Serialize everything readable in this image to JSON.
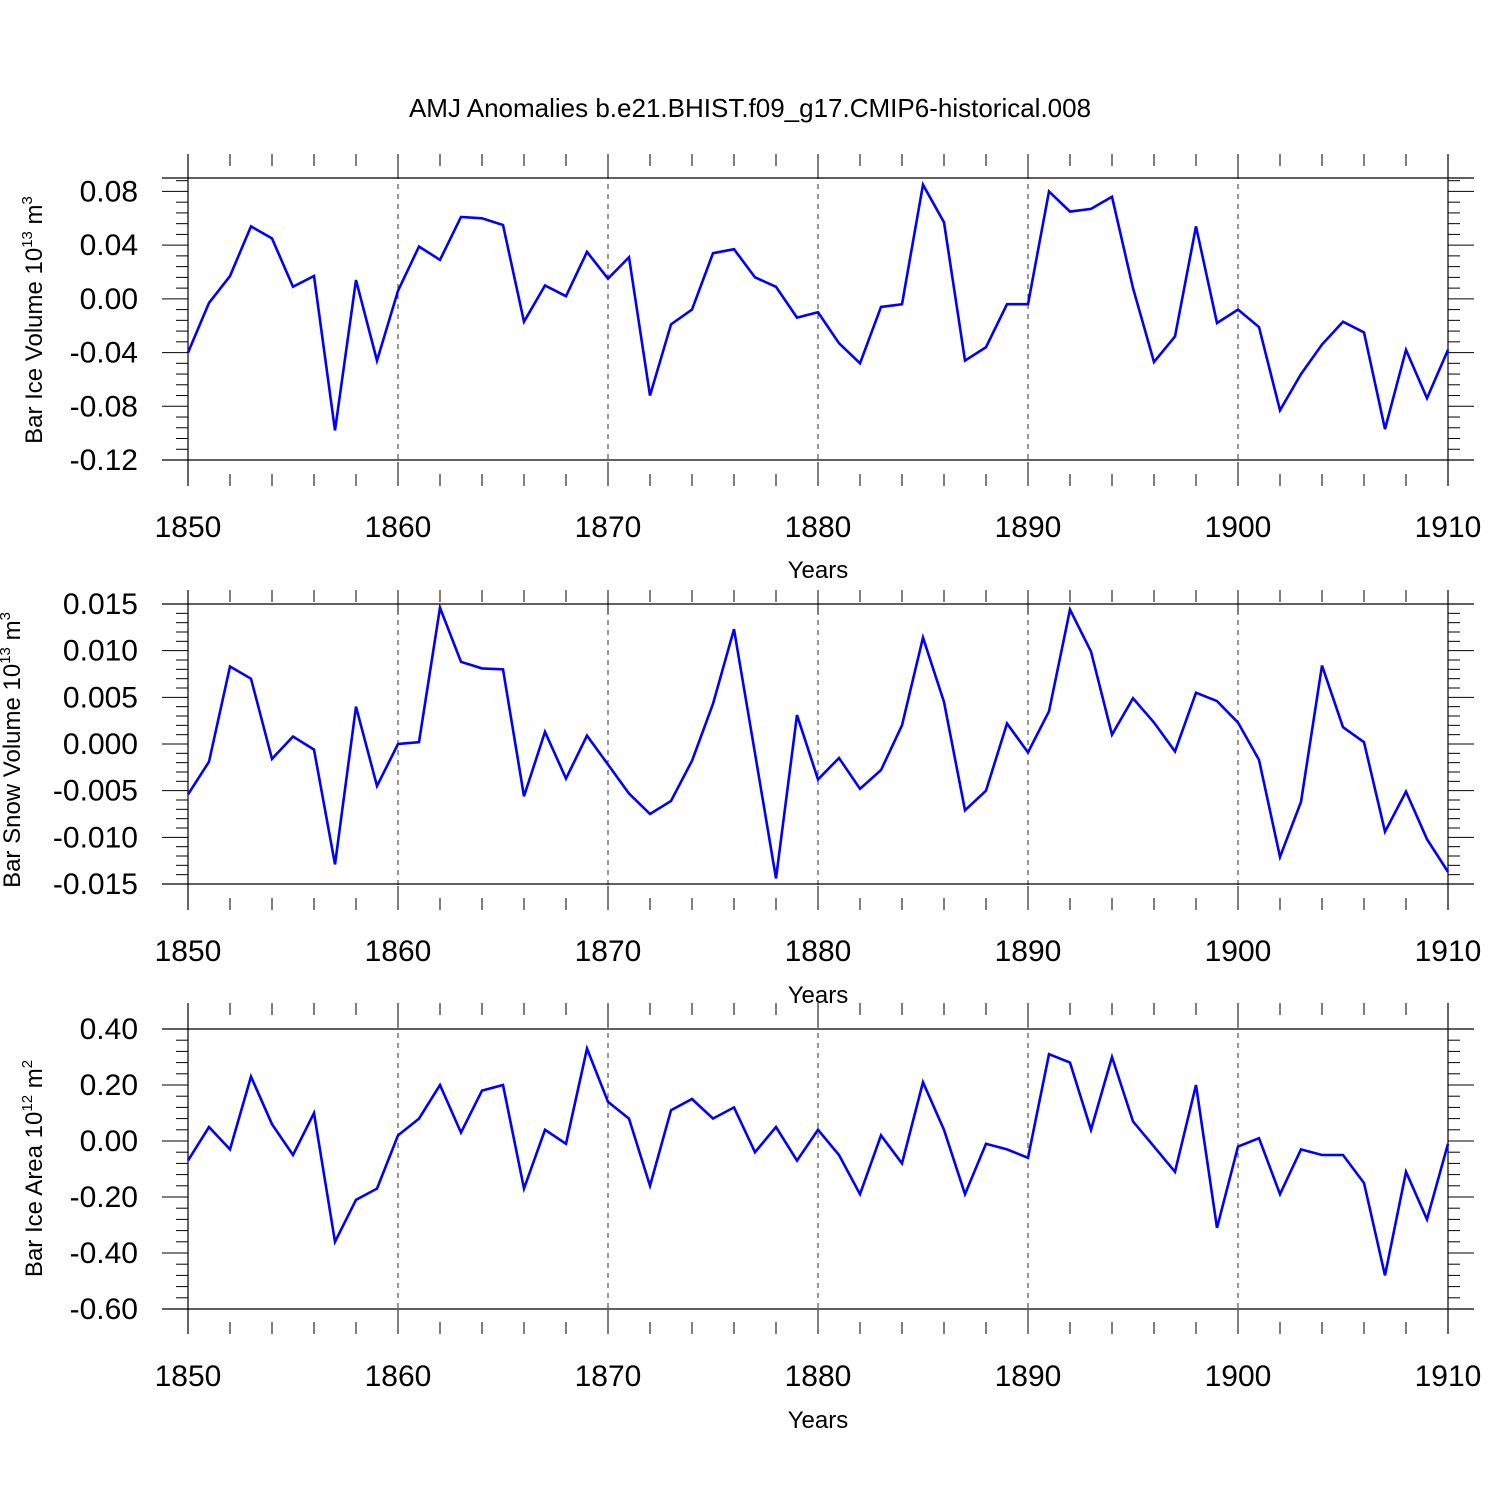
{
  "title": "AMJ Anomalies b.e21.BHIST.f09_g17.CMIP6-historical.008",
  "line_color": "#0000ff",
  "chart_data": [
    {
      "type": "line",
      "xlabel": "Years",
      "ylabel": {
        "main": "Bar Ice Volume 10",
        "sup": "13",
        "unit": " m",
        "unit_sup": "3"
      },
      "xlim": [
        1850,
        1910
      ],
      "ylim": [
        -0.12,
        0.09
      ],
      "xticks": [
        1850,
        1860,
        1870,
        1880,
        1890,
        1900,
        1910
      ],
      "xtick_labels": [
        "1850",
        "1860",
        "1870",
        "1880",
        "1890",
        "1900",
        "1910"
      ],
      "yticks": [
        -0.12,
        -0.08,
        -0.04,
        0.0,
        0.04,
        0.08
      ],
      "ytick_labels": [
        "-0.12",
        "-0.08",
        "-0.04",
        "0.00",
        "0.04",
        "0.08"
      ],
      "x_start": 1850,
      "values": [
        -0.04,
        -0.003,
        0.017,
        0.054,
        0.045,
        0.009,
        0.017,
        -0.098,
        0.014,
        -0.046,
        0.006,
        0.039,
        0.029,
        0.061,
        0.06,
        0.055,
        -0.017,
        0.01,
        0.002,
        0.035,
        0.015,
        0.031,
        -0.072,
        -0.019,
        -0.008,
        0.034,
        0.037,
        0.016,
        0.009,
        -0.014,
        -0.01,
        -0.033,
        -0.048,
        -0.006,
        -0.004,
        0.085,
        0.057,
        -0.046,
        -0.036,
        -0.004,
        -0.004,
        0.08,
        0.065,
        0.067,
        0.076,
        0.008,
        -0.047,
        -0.028,
        0.054,
        -0.018,
        -0.008,
        -0.021,
        -0.083,
        -0.056,
        -0.034,
        -0.017,
        -0.025,
        -0.097,
        -0.038,
        -0.074,
        -0.038
      ]
    },
    {
      "type": "line",
      "xlabel": "Years",
      "ylabel": {
        "main": "Bar Snow Volume 10",
        "sup": "13",
        "unit": " m",
        "unit_sup": "3"
      },
      "xlim": [
        1850,
        1910
      ],
      "ylim": [
        -0.015,
        0.015
      ],
      "xticks": [
        1850,
        1860,
        1870,
        1880,
        1890,
        1900,
        1910
      ],
      "xtick_labels": [
        "1850",
        "1860",
        "1870",
        "1880",
        "1890",
        "1900",
        "1910"
      ],
      "yticks": [
        -0.015,
        -0.01,
        -0.005,
        0.0,
        0.005,
        0.01,
        0.015
      ],
      "ytick_labels": [
        "-0.015",
        "-0.010",
        "-0.005",
        "0.000",
        "0.005",
        "0.010",
        "0.015"
      ],
      "x_start": 1850,
      "values": [
        -0.0054,
        -0.0019,
        0.0083,
        0.007,
        -0.0016,
        0.0008,
        -0.0006,
        -0.0129,
        0.004,
        -0.0045,
        0.0,
        0.0002,
        0.0146,
        0.0088,
        0.0081,
        0.008,
        -0.0056,
        0.0013,
        -0.0037,
        0.0009,
        -0.0022,
        -0.0053,
        -0.0075,
        -0.0061,
        -0.0018,
        0.0043,
        0.0123,
        -0.001,
        -0.0144,
        0.0031,
        -0.0038,
        -0.0015,
        -0.0048,
        -0.0028,
        0.002,
        0.0114,
        0.0045,
        -0.0071,
        -0.005,
        0.0022,
        -0.0009,
        0.0035,
        0.0144,
        0.0099,
        0.001,
        0.0049,
        0.0023,
        -0.0008,
        0.0055,
        0.0046,
        0.0023,
        -0.0017,
        -0.0121,
        -0.0062,
        0.0084,
        0.0018,
        0.0002,
        -0.0094,
        -0.0051,
        -0.0102,
        -0.0137
      ]
    },
    {
      "type": "line",
      "xlabel": "Years",
      "ylabel": {
        "main": "Bar Ice Area 10",
        "sup": "12",
        "unit": " m",
        "unit_sup": "2"
      },
      "xlim": [
        1850,
        1910
      ],
      "ylim": [
        -0.6,
        0.4
      ],
      "xticks": [
        1850,
        1860,
        1870,
        1880,
        1890,
        1900,
        1910
      ],
      "xtick_labels": [
        "1850",
        "1860",
        "1870",
        "1880",
        "1890",
        "1900",
        "1910"
      ],
      "yticks": [
        -0.6,
        -0.4,
        -0.2,
        0.0,
        0.2,
        0.4
      ],
      "ytick_labels": [
        "-0.60",
        "-0.40",
        "-0.20",
        "0.00",
        "0.20",
        "0.40"
      ],
      "x_start": 1850,
      "values": [
        -0.07,
        0.05,
        -0.03,
        0.23,
        0.06,
        -0.05,
        0.1,
        -0.36,
        -0.21,
        -0.17,
        0.02,
        0.08,
        0.2,
        0.03,
        0.18,
        0.2,
        -0.17,
        0.04,
        -0.01,
        0.33,
        0.14,
        0.08,
        -0.16,
        0.11,
        0.15,
        0.08,
        0.12,
        -0.04,
        0.05,
        -0.07,
        0.04,
        -0.05,
        -0.19,
        0.02,
        -0.08,
        0.21,
        0.04,
        -0.19,
        -0.01,
        -0.03,
        -0.06,
        0.31,
        0.28,
        0.04,
        0.3,
        0.07,
        -0.02,
        -0.11,
        0.2,
        -0.31,
        -0.02,
        0.01,
        -0.19,
        -0.03,
        -0.05,
        -0.05,
        -0.15,
        -0.48,
        -0.11,
        -0.28,
        -0.01
      ]
    }
  ]
}
